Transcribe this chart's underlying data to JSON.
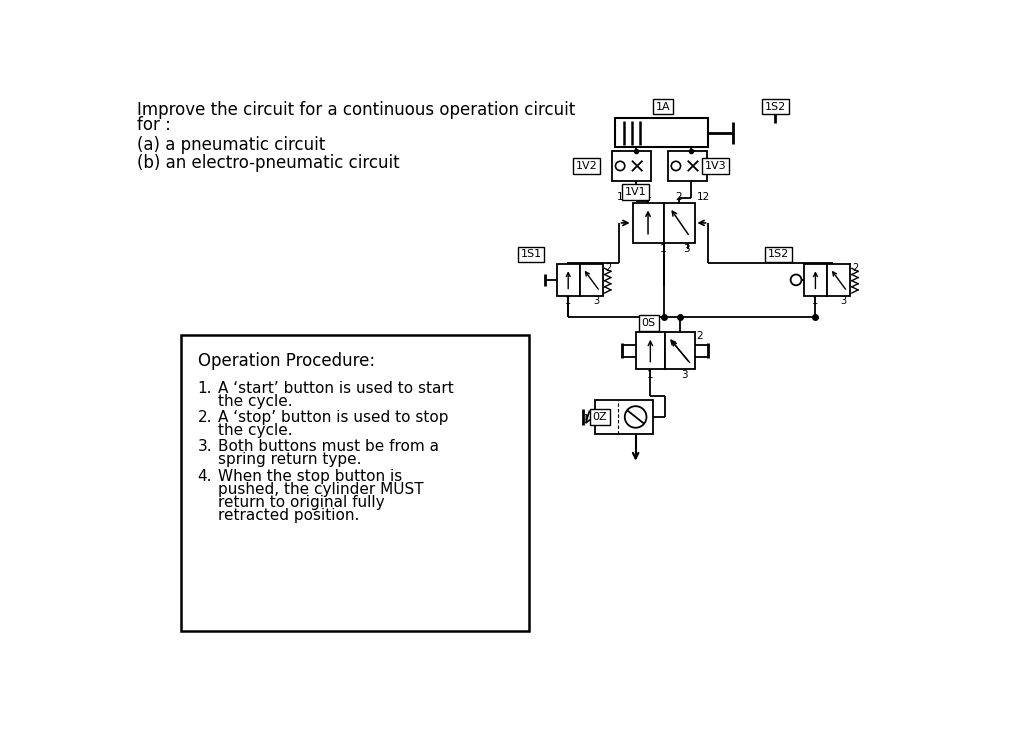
{
  "title_line1": "Improve the circuit for a continuous operation circuit",
  "title_line2": "for :",
  "subtitle_a": "(a) a pneumatic circuit",
  "subtitle_b": "(b) an electro-pneumatic circuit",
  "box_title": "Operation Procedure:",
  "bg_color": "#ffffff",
  "text_color": "#000000",
  "font_size_title": 12,
  "font_size_text": 11,
  "font_size_small": 7.5
}
